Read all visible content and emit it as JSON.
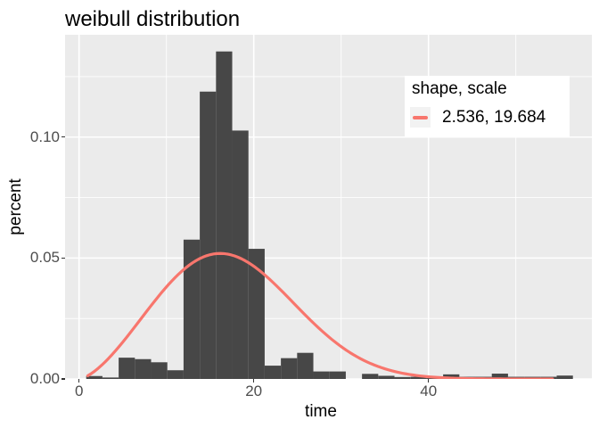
{
  "title": "weibull distribution",
  "axes": {
    "x": {
      "label": "time",
      "major_tick_labels": [
        "0",
        "20",
        "40"
      ],
      "major_tick_values": [
        0,
        20,
        40
      ],
      "minor_tick_values": [
        10,
        30,
        50
      ],
      "range": [
        -1.6,
        58.7
      ]
    },
    "y": {
      "label": "percent",
      "major_tick_labels": [
        "0.00",
        "0.05",
        "0.10"
      ],
      "major_tick_values": [
        0,
        0.05,
        0.1
      ],
      "minor_tick_values": [
        0.025,
        0.075,
        0.125
      ],
      "range": [
        0,
        0.1423
      ]
    }
  },
  "legend": {
    "title": "shape, scale",
    "entries": [
      {
        "label": "2.536, 19.684",
        "color": "#F8766D"
      }
    ]
  },
  "chart_data": {
    "type": "histogram+line",
    "title": "weibull distribution",
    "xlabel": "time",
    "ylabel": "percent",
    "xlim": [
      -1.6,
      58.7
    ],
    "ylim": [
      0,
      0.1423
    ],
    "grid": "white major and minor gridlines on gray panel",
    "legend_position": "inside top-right",
    "histogram": {
      "bin_start": 0.82,
      "bin_width": 1.857,
      "percent": [
        0.0012,
        0.0006,
        0.0088,
        0.0082,
        0.0069,
        0.0036,
        0.0576,
        0.1188,
        0.1354,
        0.1027,
        0.0538,
        0.0055,
        0.0086,
        0.0108,
        0.0031,
        0.0031,
        0.0,
        0.0021,
        0.0013,
        0.0008,
        0.0009,
        0.0009,
        0.0019,
        0.0009,
        0.0009,
        0.0022,
        0.0009,
        0.0009,
        0.0009,
        0.0014
      ]
    },
    "curve": {
      "distribution": "weibull-pdf",
      "shape": 2.536,
      "scale": 19.684,
      "x_from": 1.0,
      "x_to": 54.2,
      "peak": {
        "x": 16.15,
        "y": 0.0519
      }
    }
  },
  "colors": {
    "panel_bg": "#EBEBEB",
    "grid": "#FFFFFF",
    "bar": "#474747",
    "curve": "#F8766D",
    "legend_bg": "#FFFFFF",
    "legend_key_bg": "#F2F2F2",
    "tick_text": "#4D4D4D",
    "tick_mark": "#333333",
    "title_text": "#000000"
  }
}
